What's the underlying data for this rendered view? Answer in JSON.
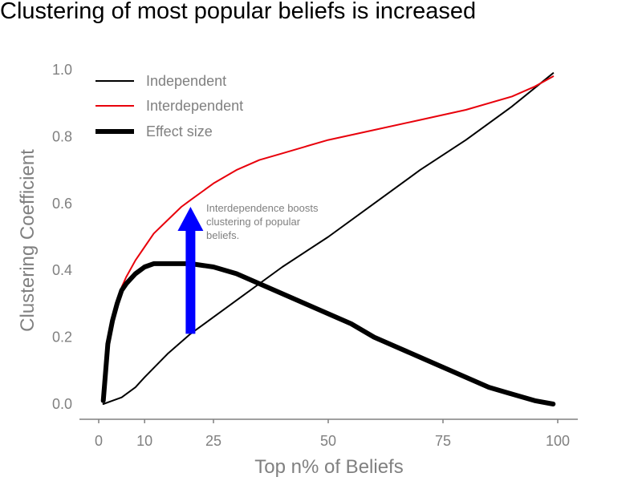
{
  "chart_data": {
    "type": "line",
    "title": "Clustering of most popular beliefs is increased",
    "xlabel": "Top n% of Beliefs",
    "ylabel": "Clustering Coefficient",
    "xlim": [
      -4,
      104
    ],
    "ylim": [
      -0.05,
      1.02
    ],
    "x_ticks": [
      0,
      10,
      25,
      50,
      75,
      100
    ],
    "x_tick_labels": [
      "0",
      "10",
      "25",
      "50",
      "75",
      "100"
    ],
    "y_ticks": [
      0.0,
      0.2,
      0.4,
      0.6,
      0.8,
      1.0
    ],
    "y_tick_labels": [
      "0.0",
      "0.2",
      "0.4",
      "0.6",
      "0.8",
      "1.0"
    ],
    "grid": false,
    "legend_position": "top-left",
    "series": [
      {
        "name": "Independent",
        "color": "#000000",
        "style": "thin",
        "x": [
          1,
          3,
          5,
          8,
          10,
          15,
          20,
          25,
          30,
          40,
          50,
          60,
          70,
          80,
          90,
          99
        ],
        "y": [
          0.0,
          0.01,
          0.02,
          0.05,
          0.08,
          0.15,
          0.21,
          0.26,
          0.31,
          0.41,
          0.5,
          0.6,
          0.7,
          0.79,
          0.89,
          0.99
        ]
      },
      {
        "name": "Interdependent",
        "color": "#e8000b",
        "style": "thin",
        "x": [
          1,
          2,
          3,
          4,
          5,
          6,
          8,
          10,
          12,
          15,
          18,
          20,
          25,
          30,
          35,
          40,
          45,
          50,
          60,
          70,
          80,
          90,
          95,
          99
        ],
        "y": [
          0.01,
          0.18,
          0.25,
          0.3,
          0.35,
          0.38,
          0.43,
          0.47,
          0.51,
          0.55,
          0.59,
          0.61,
          0.66,
          0.7,
          0.73,
          0.75,
          0.77,
          0.79,
          0.82,
          0.85,
          0.88,
          0.92,
          0.95,
          0.98
        ]
      },
      {
        "name": "Effect size",
        "color": "#000000",
        "style": "thick",
        "x": [
          1,
          2,
          3,
          4,
          5,
          6,
          8,
          10,
          12,
          15,
          18,
          20,
          25,
          30,
          35,
          40,
          45,
          50,
          55,
          60,
          65,
          70,
          75,
          80,
          85,
          90,
          95,
          99
        ],
        "y": [
          0.01,
          0.18,
          0.25,
          0.3,
          0.34,
          0.36,
          0.39,
          0.41,
          0.42,
          0.42,
          0.42,
          0.42,
          0.41,
          0.39,
          0.36,
          0.33,
          0.3,
          0.27,
          0.24,
          0.2,
          0.17,
          0.14,
          0.11,
          0.08,
          0.05,
          0.03,
          0.01,
          0.0
        ]
      }
    ],
    "annotation": {
      "lines": [
        "Interdependence boosts",
        "clustering of popular",
        "beliefs."
      ],
      "arrow_color": "#0000ff",
      "arrow_x": 20,
      "arrow_y_start": 0.21,
      "arrow_y_end": 0.59
    }
  }
}
